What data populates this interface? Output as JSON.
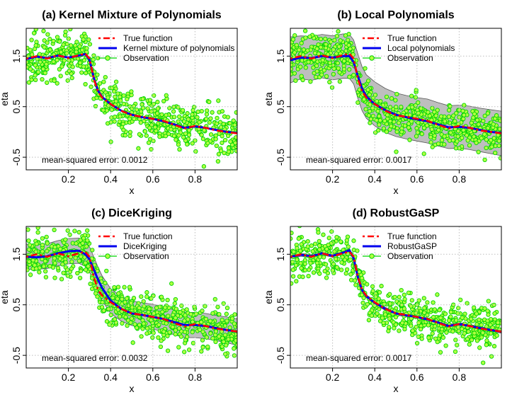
{
  "chart_data": [
    {
      "type": "line",
      "title": "(a) Kernel Mixture of Polynomials",
      "xlabel": "x",
      "ylabel": "eta",
      "xlim": [
        0.0,
        1.0
      ],
      "ylim": [
        -0.75,
        2.05
      ],
      "xticks": [
        "0.2",
        "0.4",
        "0.6",
        "0.8"
      ],
      "yticks": [
        "-0.5",
        "0.5",
        "1.5"
      ],
      "grid": true,
      "legend": "top-right",
      "legend_entries": [
        "True function",
        "Kernel mixture of polynomials",
        "Observation"
      ],
      "band": false,
      "mse": "mean-squared error: 0.0012",
      "series": [
        {
          "role": "truth",
          "x": [
            0.0,
            0.05,
            0.1,
            0.15,
            0.2,
            0.25,
            0.28,
            0.3,
            0.32,
            0.34,
            0.36,
            0.4,
            0.45,
            0.5,
            0.55,
            0.6,
            0.65,
            0.7,
            0.75,
            0.8,
            0.85,
            0.9,
            0.95,
            1.0
          ],
          "y": [
            1.45,
            1.5,
            1.45,
            1.52,
            1.46,
            1.52,
            1.55,
            1.45,
            1.05,
            0.8,
            0.68,
            0.55,
            0.42,
            0.33,
            0.3,
            0.26,
            0.22,
            0.14,
            0.07,
            0.12,
            0.08,
            0.03,
            0.0,
            -0.03
          ]
        },
        {
          "role": "estimate",
          "x": [
            0.0,
            0.05,
            0.1,
            0.15,
            0.2,
            0.25,
            0.28,
            0.3,
            0.32,
            0.34,
            0.36,
            0.4,
            0.45,
            0.5,
            0.55,
            0.6,
            0.65,
            0.7,
            0.75,
            0.8,
            0.85,
            0.9,
            0.95,
            1.0
          ],
          "y": [
            1.44,
            1.49,
            1.46,
            1.51,
            1.47,
            1.51,
            1.54,
            1.43,
            1.07,
            0.82,
            0.69,
            0.55,
            0.42,
            0.34,
            0.29,
            0.26,
            0.21,
            0.15,
            0.08,
            0.11,
            0.08,
            0.04,
            0.0,
            -0.02
          ]
        }
      ]
    },
    {
      "type": "line",
      "title": "(b) Local Polynomials",
      "xlabel": "x",
      "ylabel": "eta",
      "xlim": [
        0.0,
        1.0
      ],
      "ylim": [
        -0.75,
        2.05
      ],
      "xticks": [
        "0.2",
        "0.4",
        "0.6",
        "0.8"
      ],
      "yticks": [
        "-0.5",
        "0.5",
        "1.5"
      ],
      "grid": true,
      "legend": "top-right",
      "legend_entries": [
        "True function",
        "Local polynomials",
        "Observation"
      ],
      "band": true,
      "mse": "mean-squared error: 0.0017",
      "series": [
        {
          "role": "truth",
          "x": [
            0.0,
            0.05,
            0.1,
            0.15,
            0.2,
            0.25,
            0.28,
            0.3,
            0.32,
            0.34,
            0.36,
            0.4,
            0.45,
            0.5,
            0.55,
            0.6,
            0.65,
            0.7,
            0.75,
            0.8,
            0.85,
            0.9,
            0.95,
            1.0
          ],
          "y": [
            1.45,
            1.5,
            1.45,
            1.52,
            1.46,
            1.52,
            1.55,
            1.45,
            1.05,
            0.8,
            0.68,
            0.55,
            0.42,
            0.33,
            0.3,
            0.26,
            0.22,
            0.14,
            0.07,
            0.12,
            0.08,
            0.03,
            0.0,
            -0.03
          ]
        },
        {
          "role": "estimate",
          "x": [
            0.0,
            0.05,
            0.1,
            0.15,
            0.2,
            0.25,
            0.28,
            0.3,
            0.32,
            0.34,
            0.36,
            0.4,
            0.45,
            0.5,
            0.55,
            0.6,
            0.65,
            0.7,
            0.75,
            0.8,
            0.85,
            0.9,
            0.95,
            1.0
          ],
          "y": [
            1.42,
            1.47,
            1.46,
            1.5,
            1.47,
            1.5,
            1.5,
            1.38,
            1.1,
            0.86,
            0.7,
            0.55,
            0.43,
            0.34,
            0.29,
            0.25,
            0.21,
            0.15,
            0.09,
            0.1,
            0.08,
            0.04,
            0.0,
            -0.02
          ],
          "lower": [
            0.97,
            1.05,
            1.02,
            1.07,
            1.03,
            1.06,
            1.06,
            0.95,
            0.66,
            0.42,
            0.27,
            0.12,
            -0.01,
            -0.09,
            -0.14,
            -0.18,
            -0.22,
            -0.28,
            -0.33,
            -0.32,
            -0.35,
            -0.39,
            -0.43,
            -0.47
          ],
          "upper": [
            1.88,
            1.9,
            1.89,
            1.93,
            1.9,
            1.94,
            1.93,
            1.82,
            1.54,
            1.29,
            1.13,
            0.99,
            0.86,
            0.77,
            0.72,
            0.68,
            0.65,
            0.58,
            0.52,
            0.53,
            0.51,
            0.47,
            0.44,
            0.41
          ]
        }
      ]
    },
    {
      "type": "line",
      "title": "(c) DiceKriging",
      "xlabel": "x",
      "ylabel": "eta",
      "xlim": [
        0.0,
        1.0
      ],
      "ylim": [
        -0.75,
        2.05
      ],
      "xticks": [
        "0.2",
        "0.4",
        "0.6",
        "0.8"
      ],
      "yticks": [
        "-0.5",
        "0.5",
        "1.5"
      ],
      "grid": true,
      "legend": "top-right",
      "legend_entries": [
        "True function",
        "DiceKriging",
        "Observation"
      ],
      "band": true,
      "mse": "mean-squared error: 0.0032",
      "series": [
        {
          "role": "truth",
          "x": [
            0.0,
            0.05,
            0.1,
            0.15,
            0.2,
            0.25,
            0.28,
            0.3,
            0.32,
            0.34,
            0.36,
            0.4,
            0.45,
            0.5,
            0.55,
            0.6,
            0.65,
            0.7,
            0.75,
            0.8,
            0.85,
            0.9,
            0.95,
            1.0
          ],
          "y": [
            1.45,
            1.5,
            1.45,
            1.52,
            1.46,
            1.52,
            1.55,
            1.45,
            1.05,
            0.8,
            0.68,
            0.55,
            0.42,
            0.33,
            0.3,
            0.26,
            0.22,
            0.14,
            0.07,
            0.12,
            0.08,
            0.03,
            0.0,
            -0.03
          ]
        },
        {
          "role": "estimate",
          "x": [
            0.0,
            0.05,
            0.1,
            0.15,
            0.2,
            0.25,
            0.28,
            0.3,
            0.32,
            0.34,
            0.36,
            0.4,
            0.45,
            0.5,
            0.55,
            0.6,
            0.65,
            0.7,
            0.75,
            0.8,
            0.85,
            0.9,
            0.95,
            1.0
          ],
          "y": [
            1.45,
            1.44,
            1.46,
            1.52,
            1.56,
            1.57,
            1.5,
            1.4,
            1.2,
            1.0,
            0.83,
            0.58,
            0.42,
            0.33,
            0.3,
            0.26,
            0.22,
            0.16,
            0.1,
            0.1,
            0.08,
            0.04,
            0.0,
            -0.03
          ],
          "lower": [
            1.2,
            1.2,
            1.22,
            1.27,
            1.31,
            1.32,
            1.26,
            1.15,
            0.95,
            0.76,
            0.58,
            0.33,
            0.18,
            0.09,
            0.05,
            0.02,
            -0.03,
            -0.09,
            -0.15,
            -0.15,
            -0.17,
            -0.21,
            -0.25,
            -0.3
          ],
          "upper": [
            1.7,
            1.69,
            1.71,
            1.77,
            1.81,
            1.82,
            1.75,
            1.65,
            1.45,
            1.25,
            1.07,
            0.82,
            0.66,
            0.58,
            0.54,
            0.51,
            0.46,
            0.4,
            0.35,
            0.35,
            0.33,
            0.29,
            0.26,
            0.22
          ]
        }
      ]
    },
    {
      "type": "line",
      "title": "(d) RobustGaSP",
      "xlabel": "x",
      "ylabel": "eta",
      "xlim": [
        0.0,
        1.0
      ],
      "ylim": [
        -0.75,
        2.05
      ],
      "xticks": [
        "0.2",
        "0.4",
        "0.6",
        "0.8"
      ],
      "yticks": [
        "-0.5",
        "0.5",
        "1.5"
      ],
      "grid": true,
      "legend": "top-right",
      "legend_entries": [
        "True function",
        "RobustGaSP",
        "Observation"
      ],
      "band": true,
      "mse": "mean-squared error: 0.0017",
      "series": [
        {
          "role": "truth",
          "x": [
            0.0,
            0.05,
            0.1,
            0.15,
            0.2,
            0.25,
            0.28,
            0.3,
            0.32,
            0.34,
            0.36,
            0.4,
            0.45,
            0.5,
            0.55,
            0.6,
            0.65,
            0.7,
            0.75,
            0.8,
            0.85,
            0.9,
            0.95,
            1.0
          ],
          "y": [
            1.45,
            1.5,
            1.45,
            1.52,
            1.46,
            1.52,
            1.55,
            1.45,
            1.05,
            0.8,
            0.68,
            0.55,
            0.42,
            0.33,
            0.3,
            0.26,
            0.22,
            0.14,
            0.07,
            0.12,
            0.08,
            0.03,
            0.0,
            -0.03
          ]
        },
        {
          "role": "estimate",
          "x": [
            0.0,
            0.05,
            0.1,
            0.15,
            0.2,
            0.25,
            0.28,
            0.3,
            0.32,
            0.34,
            0.36,
            0.4,
            0.45,
            0.5,
            0.55,
            0.6,
            0.65,
            0.7,
            0.75,
            0.8,
            0.85,
            0.9,
            0.95,
            1.0
          ],
          "y": [
            1.45,
            1.49,
            1.46,
            1.52,
            1.47,
            1.53,
            1.58,
            1.42,
            1.04,
            0.79,
            0.67,
            0.54,
            0.42,
            0.33,
            0.29,
            0.26,
            0.21,
            0.15,
            0.08,
            0.12,
            0.08,
            0.04,
            0.0,
            -0.03
          ],
          "lower": [
            1.42,
            1.46,
            1.43,
            1.49,
            1.44,
            1.5,
            1.55,
            1.39,
            1.01,
            0.76,
            0.64,
            0.51,
            0.39,
            0.3,
            0.26,
            0.23,
            0.18,
            0.12,
            0.05,
            0.09,
            0.05,
            0.01,
            -0.03,
            -0.06
          ],
          "upper": [
            1.48,
            1.52,
            1.49,
            1.55,
            1.5,
            1.56,
            1.61,
            1.45,
            1.07,
            0.82,
            0.7,
            0.57,
            0.45,
            0.36,
            0.32,
            0.29,
            0.24,
            0.18,
            0.11,
            0.15,
            0.11,
            0.07,
            0.03,
            0.0
          ]
        }
      ]
    }
  ],
  "colors": {
    "truth": "#ff0000",
    "estimate": "#0000ee",
    "observation_fill": "#b0ff40",
    "observation_edge": "#00d400",
    "band": "#bebebe",
    "grid": "#bdbdbd"
  }
}
